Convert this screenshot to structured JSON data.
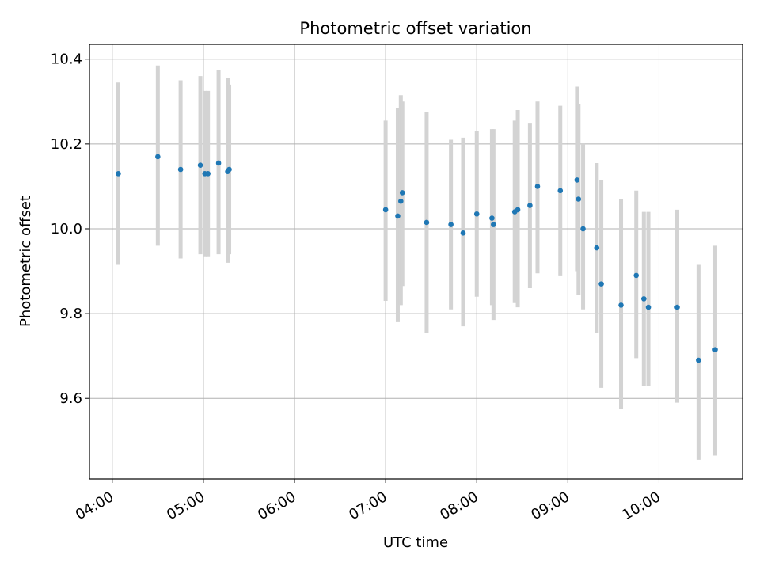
{
  "chart_data": {
    "type": "scatter",
    "title": "Photometric offset variation",
    "xlabel": "UTC time",
    "ylabel": "Photometric offset",
    "xlim": [
      "03:45",
      "10:55"
    ],
    "ylim": [
      9.41,
      10.435
    ],
    "xticks": [
      "04:00",
      "05:00",
      "06:00",
      "07:00",
      "08:00",
      "09:00",
      "10:00"
    ],
    "yticks": [
      9.6,
      9.8,
      10.0,
      10.2,
      10.4
    ],
    "ytick_labels": [
      "9.6",
      "9.8",
      "10.0",
      "10.2",
      "10.4"
    ],
    "grid": true,
    "colors": {
      "point": "#1f77b4",
      "errorbar": "#d3d3d3",
      "grid": "#b0b0b0"
    },
    "series": [
      {
        "x": [
          "04:04",
          "04:30",
          "04:45",
          "05:01",
          "05:03",
          "05:10",
          "05:16",
          "05:17",
          "04:58",
          "07:00",
          "07:08",
          "07:10",
          "07:11",
          "07:27",
          "07:43",
          "07:51",
          "08:00",
          "08:10",
          "08:11",
          "08:25",
          "08:27",
          "08:35",
          "08:40",
          "08:55",
          "09:06",
          "09:07",
          "09:10",
          "09:19",
          "09:22",
          "09:35",
          "09:45",
          "09:50",
          "09:53",
          "10:12",
          "10:26",
          "10:37"
        ],
        "y": [
          10.13,
          10.17,
          10.14,
          10.13,
          10.13,
          10.155,
          10.135,
          10.14,
          10.15,
          10.045,
          10.03,
          10.065,
          10.085,
          10.015,
          10.01,
          9.99,
          10.035,
          10.025,
          10.01,
          10.04,
          10.045,
          10.055,
          10.1,
          10.09,
          10.115,
          10.07,
          10.0,
          9.955,
          9.87,
          9.82,
          9.89,
          9.835,
          9.815,
          9.815,
          9.69,
          9.715
        ],
        "yerr_low": [
          9.915,
          9.96,
          9.93,
          9.935,
          9.935,
          9.94,
          9.92,
          9.94,
          9.94,
          9.83,
          9.78,
          9.82,
          9.865,
          9.755,
          9.81,
          9.77,
          9.84,
          9.82,
          9.785,
          9.825,
          9.815,
          9.86,
          9.895,
          9.89,
          9.9,
          9.845,
          9.81,
          9.755,
          9.625,
          9.575,
          9.695,
          9.63,
          9.63,
          9.59,
          9.455,
          9.465
        ],
        "yerr_high": [
          10.345,
          10.385,
          10.35,
          10.325,
          10.325,
          10.375,
          10.355,
          10.34,
          10.36,
          10.255,
          10.285,
          10.315,
          10.3,
          10.275,
          10.21,
          10.215,
          10.23,
          10.235,
          10.235,
          10.255,
          10.28,
          10.25,
          10.3,
          10.29,
          10.335,
          10.295,
          10.2,
          10.155,
          10.115,
          10.07,
          10.09,
          10.04,
          10.04,
          10.045,
          9.915,
          9.96
        ]
      }
    ]
  }
}
